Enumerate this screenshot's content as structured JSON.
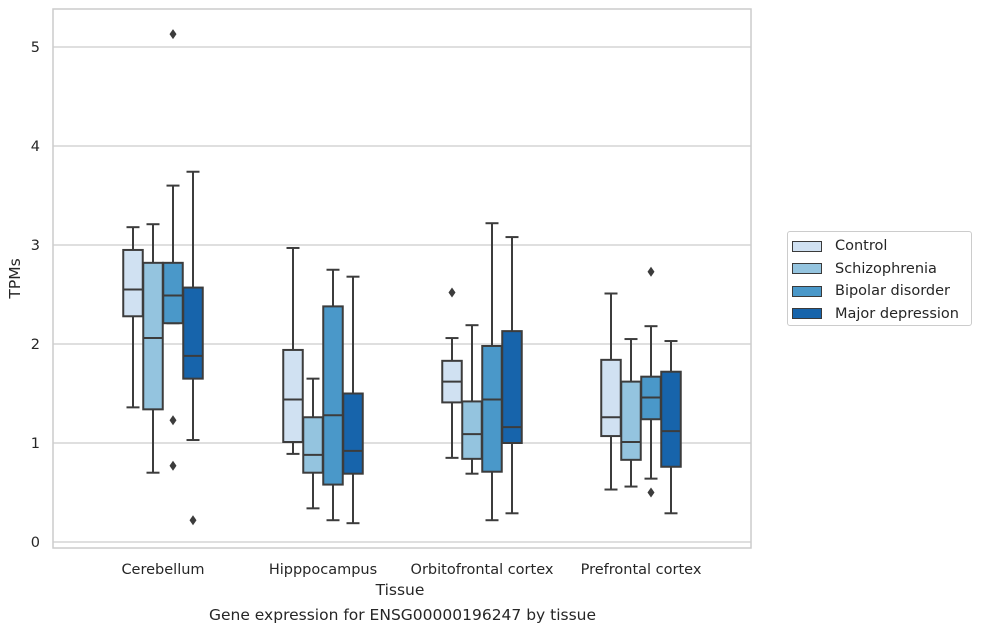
{
  "chart_data": {
    "type": "boxplot",
    "xlabel": "Tissue",
    "ylabel": "TPMs",
    "caption": "Gene expression for ENSG00000196247 by tissue",
    "ylim": [
      -0.05,
      5.4
    ],
    "yticks": [
      0,
      1,
      2,
      3,
      4,
      5
    ],
    "grid": "horizontal",
    "legend_position": "right, outside",
    "categories": [
      "Cerebellum",
      "Hipppocampus",
      "Orbitofrontal cortex",
      "Prefrontal cortex"
    ],
    "series": [
      {
        "name": "Control",
        "color": "#d0e1f2",
        "boxes": [
          {
            "whislo": 1.36,
            "q1": 2.28,
            "med": 2.55,
            "q3": 2.95,
            "whishi": 3.18,
            "fliers": []
          },
          {
            "whislo": 0.89,
            "q1": 1.01,
            "med": 1.44,
            "q3": 1.94,
            "whishi": 2.97,
            "fliers": []
          },
          {
            "whislo": 0.85,
            "q1": 1.41,
            "med": 1.62,
            "q3": 1.83,
            "whishi": 2.06,
            "fliers": [
              2.52
            ]
          },
          {
            "whislo": 0.53,
            "q1": 1.07,
            "med": 1.26,
            "q3": 1.84,
            "whishi": 2.51,
            "fliers": []
          }
        ]
      },
      {
        "name": "Schizophrenia",
        "color": "#94c4df",
        "boxes": [
          {
            "whislo": 0.7,
            "q1": 1.34,
            "med": 2.06,
            "q3": 2.82,
            "whishi": 3.21,
            "fliers": []
          },
          {
            "whislo": 0.34,
            "q1": 0.7,
            "med": 0.88,
            "q3": 1.26,
            "whishi": 1.65,
            "fliers": []
          },
          {
            "whislo": 0.69,
            "q1": 0.84,
            "med": 1.09,
            "q3": 1.42,
            "whishi": 2.19,
            "fliers": []
          },
          {
            "whislo": 0.56,
            "q1": 0.83,
            "med": 1.01,
            "q3": 1.62,
            "whishi": 2.05,
            "fliers": []
          }
        ]
      },
      {
        "name": "Bipolar disorder",
        "color": "#4a98c9",
        "boxes": [
          {
            "whislo": 2.21,
            "q1": 2.21,
            "med": 2.49,
            "q3": 2.82,
            "whishi": 3.6,
            "fliers": [
              5.13,
              1.23,
              0.77
            ]
          },
          {
            "whislo": 0.22,
            "q1": 0.58,
            "med": 1.28,
            "q3": 2.38,
            "whishi": 2.75,
            "fliers": []
          },
          {
            "whislo": 0.22,
            "q1": 0.71,
            "med": 1.44,
            "q3": 1.98,
            "whishi": 3.22,
            "fliers": []
          },
          {
            "whislo": 0.64,
            "q1": 1.24,
            "med": 1.46,
            "q3": 1.67,
            "whishi": 2.18,
            "fliers": [
              2.73,
              0.5
            ]
          }
        ]
      },
      {
        "name": "Major depression",
        "color": "#1764ab",
        "boxes": [
          {
            "whislo": 1.03,
            "q1": 1.65,
            "med": 1.88,
            "q3": 2.57,
            "whishi": 3.74,
            "fliers": [
              0.22
            ]
          },
          {
            "whislo": 0.19,
            "q1": 0.69,
            "med": 0.92,
            "q3": 1.5,
            "whishi": 2.68,
            "fliers": []
          },
          {
            "whislo": 0.29,
            "q1": 1.0,
            "med": 1.16,
            "q3": 2.13,
            "whishi": 3.08,
            "fliers": []
          },
          {
            "whislo": 0.29,
            "q1": 0.76,
            "med": 1.12,
            "q3": 1.72,
            "whishi": 2.03,
            "fliers": []
          }
        ]
      }
    ]
  }
}
